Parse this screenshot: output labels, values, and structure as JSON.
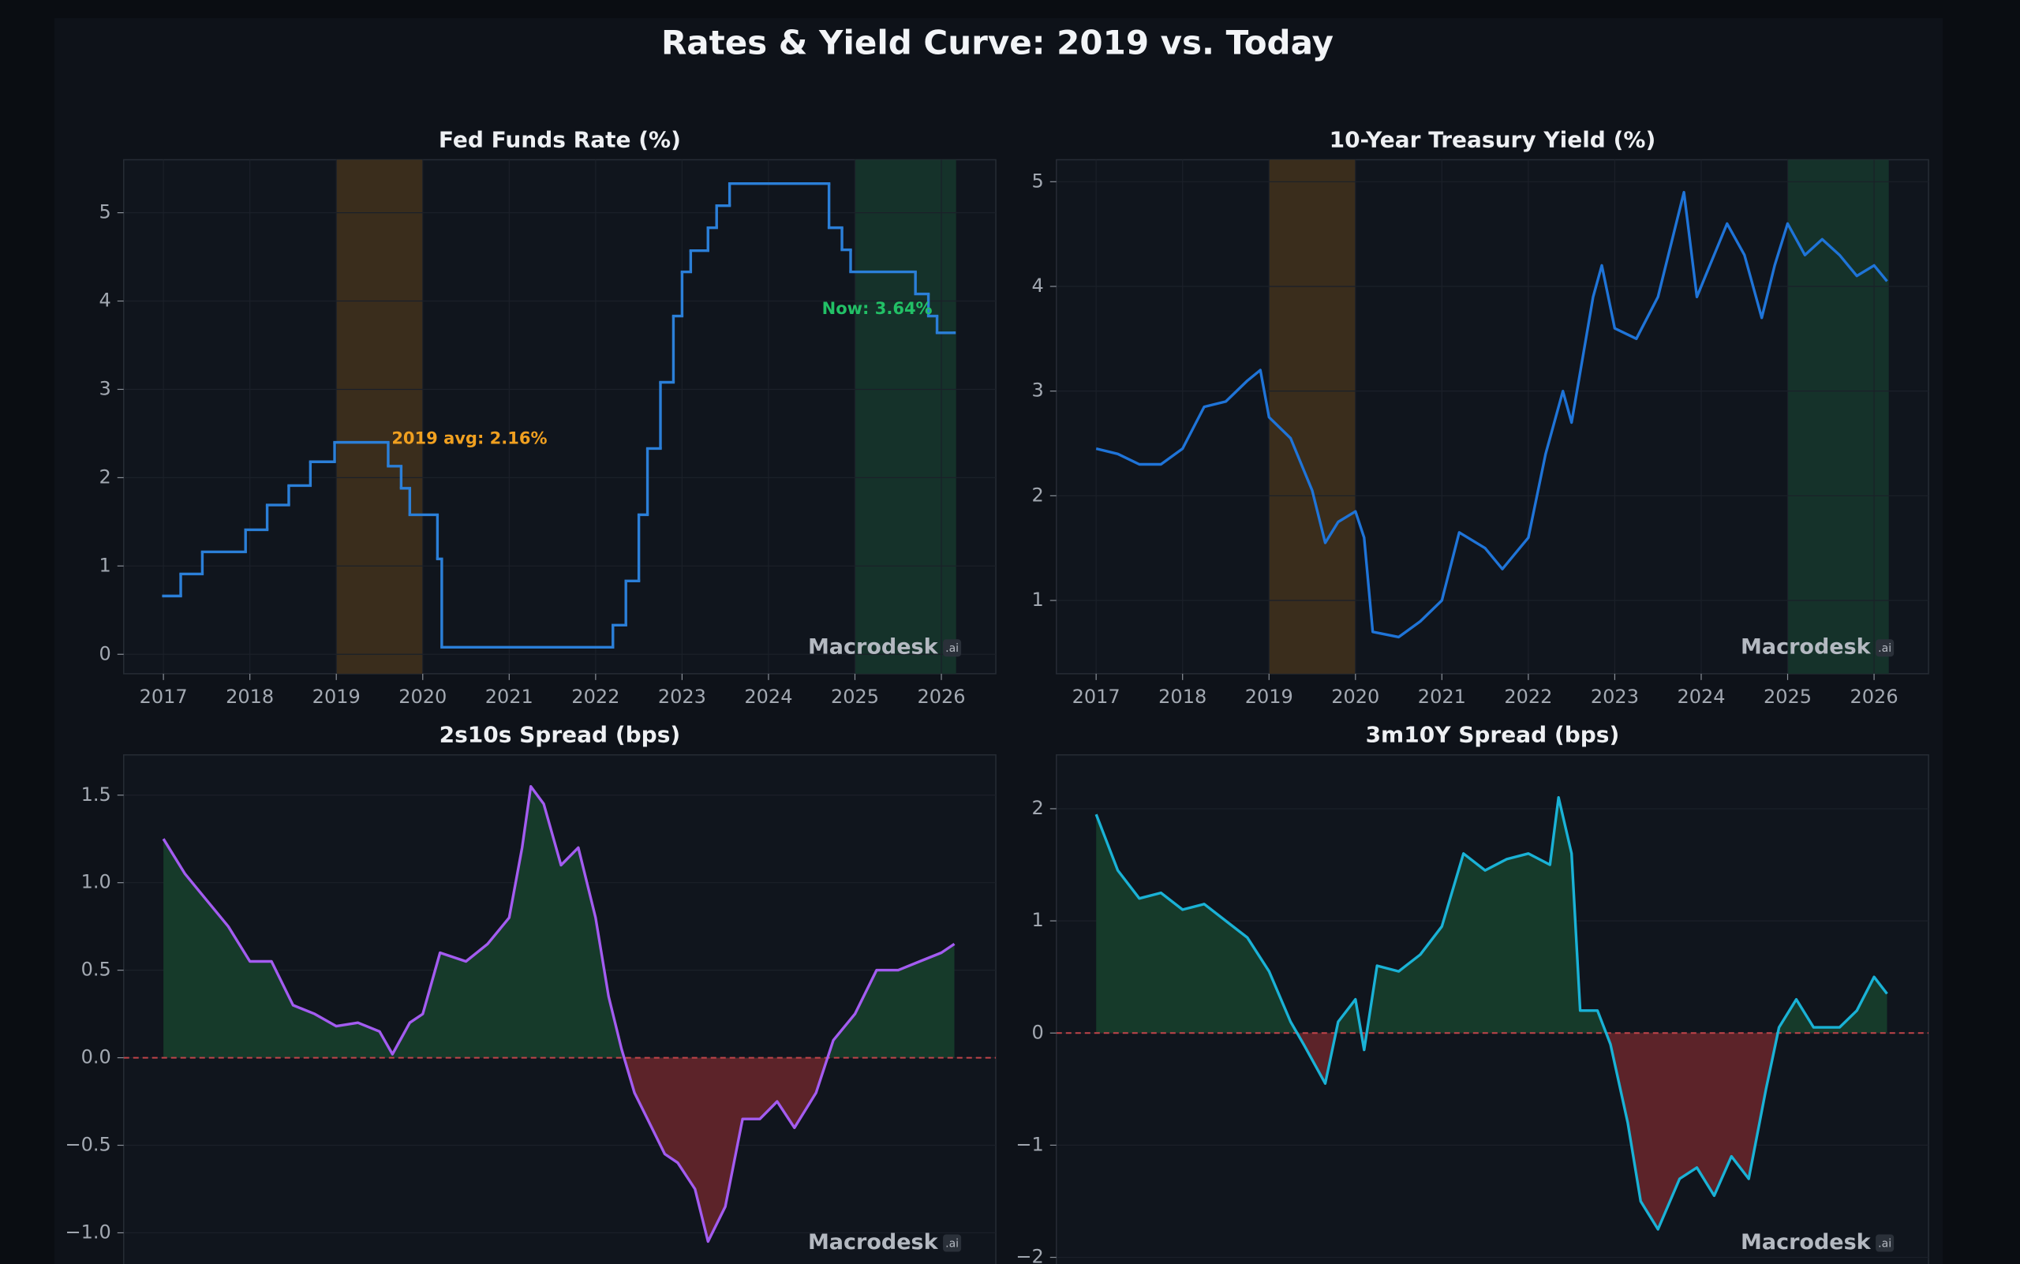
{
  "title": "Rates & Yield Curve: 2019 vs. Today",
  "watermark": "Macrodesk",
  "watermark_suffix": ".ai",
  "chart_data": [
    {
      "type": "step",
      "title": "Fed Funds Rate (%)",
      "series": [
        {
          "name": "Fed Funds Rate",
          "color": "#2b7fd8",
          "x": [
            2017,
            2017.2,
            2017.45,
            2017.95,
            2018.2,
            2018.45,
            2018.7,
            2018.98,
            2019.6,
            2019.75,
            2019.85,
            2020.17,
            2020.22,
            2022.2,
            2022.35,
            2022.5,
            2022.6,
            2022.75,
            2022.9,
            2023.0,
            2023.1,
            2023.3,
            2023.4,
            2023.55,
            2024.7,
            2024.85,
            2024.95,
            2025.7,
            2025.85,
            2025.95,
            2026.15
          ],
          "values": [
            0.66,
            0.91,
            1.16,
            1.41,
            1.69,
            1.91,
            2.18,
            2.4,
            2.13,
            1.88,
            1.58,
            1.08,
            0.08,
            0.33,
            0.83,
            1.58,
            2.33,
            3.08,
            3.83,
            4.33,
            4.57,
            4.83,
            5.08,
            5.33,
            4.83,
            4.58,
            4.33,
            4.08,
            3.83,
            3.64,
            3.64
          ]
        }
      ],
      "bands": [
        {
          "xlim": [
            2019,
            2020
          ],
          "color": "#3a2d1c"
        },
        {
          "xlim": [
            2025,
            2026.17
          ],
          "color": "#15322a"
        }
      ],
      "annotations": [
        {
          "text": "2019 avg: 2.16%",
          "color": "#f0a020"
        },
        {
          "text": "Now: 3.64%",
          "color": "#22c066"
        }
      ],
      "xlim": [
        2016.54,
        2026.63
      ],
      "xticks": [
        2017,
        2018,
        2019,
        2020,
        2021,
        2022,
        2023,
        2024,
        2025,
        2026
      ],
      "ylim": [
        -0.22,
        5.6
      ],
      "yticks": [
        0,
        1,
        2,
        3,
        4,
        5
      ],
      "grid": true
    },
    {
      "type": "line",
      "title": "10-Year Treasury Yield (%)",
      "series": [
        {
          "name": "10-Year Treasury Yield",
          "color": "#1f74d8",
          "x": [
            2017,
            2017.25,
            2017.5,
            2017.75,
            2018,
            2018.25,
            2018.5,
            2018.75,
            2018.9,
            2019,
            2019.25,
            2019.5,
            2019.65,
            2019.8,
            2020,
            2020.1,
            2020.2,
            2020.5,
            2020.75,
            2021,
            2021.2,
            2021.5,
            2021.7,
            2021.9,
            2022,
            2022.2,
            2022.4,
            2022.5,
            2022.75,
            2022.85,
            2023,
            2023.25,
            2023.5,
            2023.8,
            2023.95,
            2024.1,
            2024.3,
            2024.5,
            2024.7,
            2024.85,
            2025,
            2025.2,
            2025.4,
            2025.6,
            2025.8,
            2026,
            2026.15
          ],
          "values": [
            2.45,
            2.4,
            2.3,
            2.3,
            2.45,
            2.85,
            2.9,
            3.1,
            3.2,
            2.75,
            2.55,
            2.05,
            1.55,
            1.75,
            1.85,
            1.6,
            0.7,
            0.65,
            0.8,
            1.0,
            1.65,
            1.5,
            1.3,
            1.5,
            1.6,
            2.4,
            3.0,
            2.7,
            3.9,
            4.2,
            3.6,
            3.5,
            3.9,
            4.9,
            3.9,
            4.2,
            4.6,
            4.3,
            3.7,
            4.2,
            4.6,
            4.3,
            4.45,
            4.3,
            4.1,
            4.2,
            4.05
          ]
        }
      ],
      "bands": [
        {
          "xlim": [
            2019,
            2020
          ],
          "color": "#3a2d1c"
        },
        {
          "xlim": [
            2025,
            2026.17
          ],
          "color": "#15322a"
        }
      ],
      "xlim": [
        2016.54,
        2026.63
      ],
      "xticks": [
        2017,
        2018,
        2019,
        2020,
        2021,
        2022,
        2023,
        2024,
        2025,
        2026
      ],
      "ylim": [
        0.3,
        5.21
      ],
      "yticks": [
        1,
        2,
        3,
        4,
        5
      ],
      "grid": true
    },
    {
      "type": "area",
      "title": "2s10s Spread (bps)",
      "series": [
        {
          "name": "2s10s Spread",
          "color": "#a35cf0",
          "x": [
            2017,
            2017.25,
            2017.5,
            2017.75,
            2018,
            2018.25,
            2018.5,
            2018.75,
            2019,
            2019.25,
            2019.5,
            2019.65,
            2019.85,
            2020,
            2020.2,
            2020.5,
            2020.75,
            2021,
            2021.15,
            2021.25,
            2021.4,
            2021.6,
            2021.8,
            2022,
            2022.15,
            2022.3,
            2022.45,
            2022.6,
            2022.8,
            2022.95,
            2023.15,
            2023.3,
            2023.5,
            2023.7,
            2023.9,
            2024.1,
            2024.3,
            2024.55,
            2024.75,
            2025,
            2025.25,
            2025.5,
            2025.75,
            2026,
            2026.15
          ],
          "values": [
            1.25,
            1.05,
            0.9,
            0.75,
            0.55,
            0.55,
            0.3,
            0.25,
            0.18,
            0.2,
            0.15,
            0.02,
            0.2,
            0.25,
            0.6,
            0.55,
            0.65,
            0.8,
            1.2,
            1.55,
            1.45,
            1.1,
            1.2,
            0.8,
            0.35,
            0.05,
            -0.2,
            -0.35,
            -0.55,
            -0.6,
            -0.75,
            -1.05,
            -0.85,
            -0.35,
            -0.35,
            -0.25,
            -0.4,
            -0.2,
            0.1,
            0.25,
            0.5,
            0.5,
            0.55,
            0.6,
            0.65
          ]
        }
      ],
      "fill_above_color": "#163a2a",
      "fill_below_color": "#5c2329",
      "zero_line_color": "#c0444a",
      "xlim": [
        2016.54,
        2026.63
      ],
      "ylim": [
        -1.39,
        1.73
      ],
      "yticks": [
        1.5,
        {
          "value": 1.0,
          "label": "1.0"
        },
        0.5,
        {
          "value": 0,
          "label": "0.0"
        },
        {
          "value": -0.5,
          "label": "−0.5"
        },
        {
          "value": -1.0,
          "label": "−1.0"
        }
      ],
      "grid": true
    },
    {
      "type": "area",
      "title": "3m10Y Spread (bps)",
      "series": [
        {
          "name": "3m10Y Spread",
          "color": "#1ab2d6",
          "x": [
            2017,
            2017.25,
            2017.5,
            2017.75,
            2018,
            2018.25,
            2018.5,
            2018.75,
            2019,
            2019.25,
            2019.4,
            2019.65,
            2019.8,
            2020,
            2020.1,
            2020.25,
            2020.5,
            2020.75,
            2021,
            2021.25,
            2021.5,
            2021.75,
            2022,
            2022.25,
            2022.35,
            2022.5,
            2022.6,
            2022.8,
            2022.95,
            2023.15,
            2023.3,
            2023.5,
            2023.75,
            2023.95,
            2024.15,
            2024.35,
            2024.55,
            2024.75,
            2024.9,
            2025.1,
            2025.3,
            2025.6,
            2025.8,
            2026,
            2026.15
          ],
          "values": [
            1.95,
            1.45,
            1.2,
            1.25,
            1.1,
            1.15,
            1.0,
            0.85,
            0.55,
            0.1,
            -0.1,
            -0.45,
            0.1,
            0.3,
            -0.15,
            0.6,
            0.55,
            0.7,
            0.95,
            1.6,
            1.45,
            1.55,
            1.6,
            1.5,
            2.1,
            1.6,
            0.2,
            0.2,
            -0.1,
            -0.8,
            -1.5,
            -1.75,
            -1.3,
            -1.2,
            -1.45,
            -1.1,
            -1.3,
            -0.5,
            0.05,
            0.3,
            0.05,
            0.05,
            0.2,
            0.5,
            0.35
          ]
        }
      ],
      "fill_above_color": "#163a2a",
      "fill_below_color": "#5c2329",
      "zero_line_color": "#c0444a",
      "xlim": [
        2016.54,
        2026.63
      ],
      "ylim": [
        -2.39,
        2.48
      ],
      "yticks": [
        2,
        1,
        0,
        {
          "value": -1,
          "label": "−1"
        },
        {
          "value": -2,
          "label": "−2"
        }
      ],
      "grid": true
    }
  ]
}
